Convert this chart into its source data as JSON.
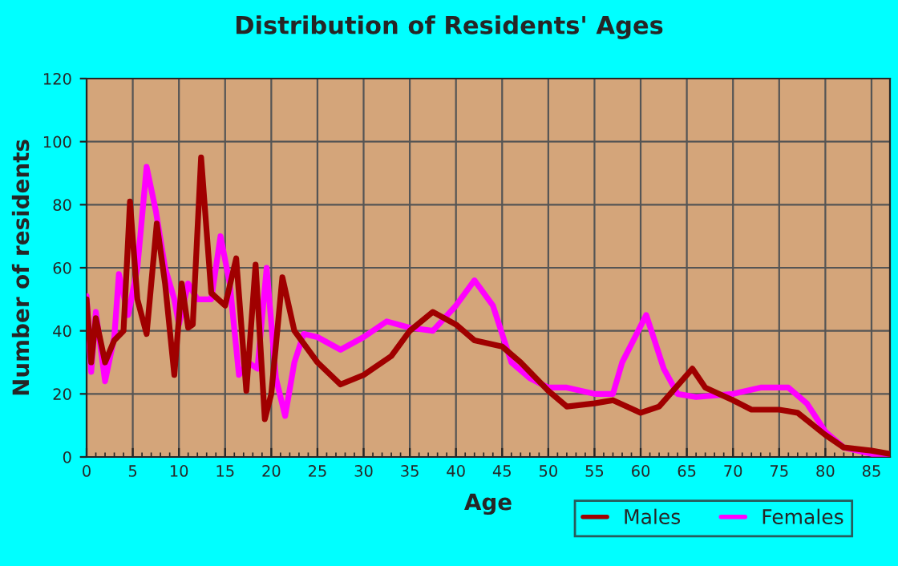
{
  "chart_data": {
    "type": "line",
    "title": "Distribution of Residents' Ages",
    "xlabel": "Age",
    "ylabel": "Number of residents",
    "xlim": [
      0,
      87
    ],
    "xticks": [
      0,
      5,
      10,
      15,
      20,
      25,
      30,
      35,
      40,
      45,
      50,
      55,
      60,
      65,
      70,
      75,
      80,
      85
    ],
    "ylim": [
      0,
      120
    ],
    "yticks": [
      0,
      20,
      40,
      60,
      80,
      100,
      120
    ],
    "grid": true,
    "legend": "bottom right",
    "series": [
      {
        "name": "Males",
        "color": "#a00000",
        "x": [
          0,
          0.5,
          1,
          2,
          3,
          4,
          4.7,
          5.5,
          6.5,
          7.6,
          8.5,
          9.5,
          10.3,
          11,
          11.5,
          12.4,
          13.5,
          15,
          16.2,
          17.3,
          18.3,
          19.3,
          20,
          21.2,
          22.5,
          25,
          27.5,
          30,
          33,
          35,
          37.5,
          40,
          42,
          45,
          47,
          50,
          52,
          55,
          57,
          60,
          62,
          65.6,
          67,
          70,
          72,
          75,
          77,
          80,
          82,
          85,
          87
        ],
        "values": [
          50,
          30,
          44,
          30,
          37,
          40,
          81,
          50,
          39,
          74,
          55,
          26,
          55,
          41,
          42,
          95,
          52,
          48,
          63,
          21,
          61,
          12,
          20,
          57,
          40,
          30,
          23,
          26,
          32,
          40,
          46,
          42,
          37,
          35,
          30,
          21,
          16,
          17,
          18,
          14,
          16,
          28,
          22,
          18,
          15,
          15,
          14,
          7,
          3,
          2,
          1
        ]
      },
      {
        "name": "Females",
        "color": "#ff00ff",
        "x": [
          0,
          0.5,
          1,
          2,
          3,
          3.5,
          4.5,
          5.5,
          6.5,
          7.5,
          8.5,
          9.5,
          10,
          11,
          12,
          13.5,
          14.5,
          15.5,
          16.5,
          17.5,
          18.5,
          19.5,
          20.5,
          21.5,
          22.5,
          23.5,
          25,
          27.5,
          30,
          32.5,
          35,
          37.5,
          40,
          42,
          44,
          46,
          48,
          50,
          52,
          55,
          57,
          58,
          60.6,
          61.5,
          62.5,
          64,
          66,
          70,
          73,
          76,
          78,
          80,
          82,
          85,
          87
        ],
        "values": [
          51,
          27,
          46,
          24,
          38,
          58,
          45,
          60,
          92,
          78,
          60,
          50,
          42,
          55,
          50,
          50,
          70,
          55,
          26,
          30,
          28,
          60,
          25,
          13,
          30,
          39,
          38,
          34,
          38,
          43,
          41,
          40,
          48,
          56,
          48,
          30,
          25,
          22,
          22,
          20,
          20,
          30,
          45,
          37,
          28,
          20,
          19,
          20,
          22,
          22,
          17,
          8,
          3,
          1,
          1
        ]
      }
    ]
  }
}
